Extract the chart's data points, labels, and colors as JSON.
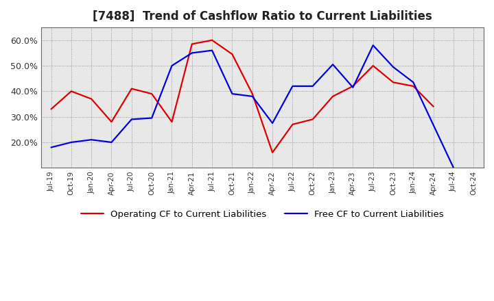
{
  "title": "[7488]  Trend of Cashflow Ratio to Current Liabilities",
  "title_fontsize": 12,
  "background_color": "#ffffff",
  "plot_bg_color": "#e8e8e8",
  "grid_color": "#555555",
  "x_labels": [
    "Jul-19",
    "Oct-19",
    "Jan-20",
    "Apr-20",
    "Jul-20",
    "Oct-20",
    "Jan-21",
    "Apr-21",
    "Jul-21",
    "Oct-21",
    "Jan-22",
    "Apr-22",
    "Jul-22",
    "Oct-22",
    "Jan-23",
    "Apr-23",
    "Jul-23",
    "Oct-23",
    "Jan-24",
    "Apr-24",
    "Jul-24",
    "Oct-24"
  ],
  "operating_cf": [
    0.33,
    0.4,
    0.37,
    0.28,
    0.41,
    0.39,
    0.28,
    0.585,
    0.6,
    0.545,
    0.39,
    0.16,
    0.27,
    0.29,
    0.38,
    0.42,
    0.5,
    0.435,
    0.42,
    0.34,
    null,
    null
  ],
  "free_cf": [
    0.18,
    0.2,
    0.21,
    0.2,
    0.29,
    0.295,
    0.5,
    0.55,
    0.56,
    0.39,
    0.38,
    0.275,
    0.42,
    0.42,
    0.505,
    0.415,
    0.58,
    0.495,
    0.435,
    null,
    0.1,
    null
  ],
  "operating_color": "#dd0000",
  "free_color": "#0000dd",
  "line_width": 1.6,
  "ylim": [
    0.1,
    0.65
  ],
  "yticks": [
    0.2,
    0.3,
    0.4,
    0.5,
    0.6
  ],
  "ytick_labels": [
    "20.0%",
    "30.0%",
    "40.0%",
    "50.0%",
    "60.0%"
  ],
  "legend_fontsize": 9.5
}
